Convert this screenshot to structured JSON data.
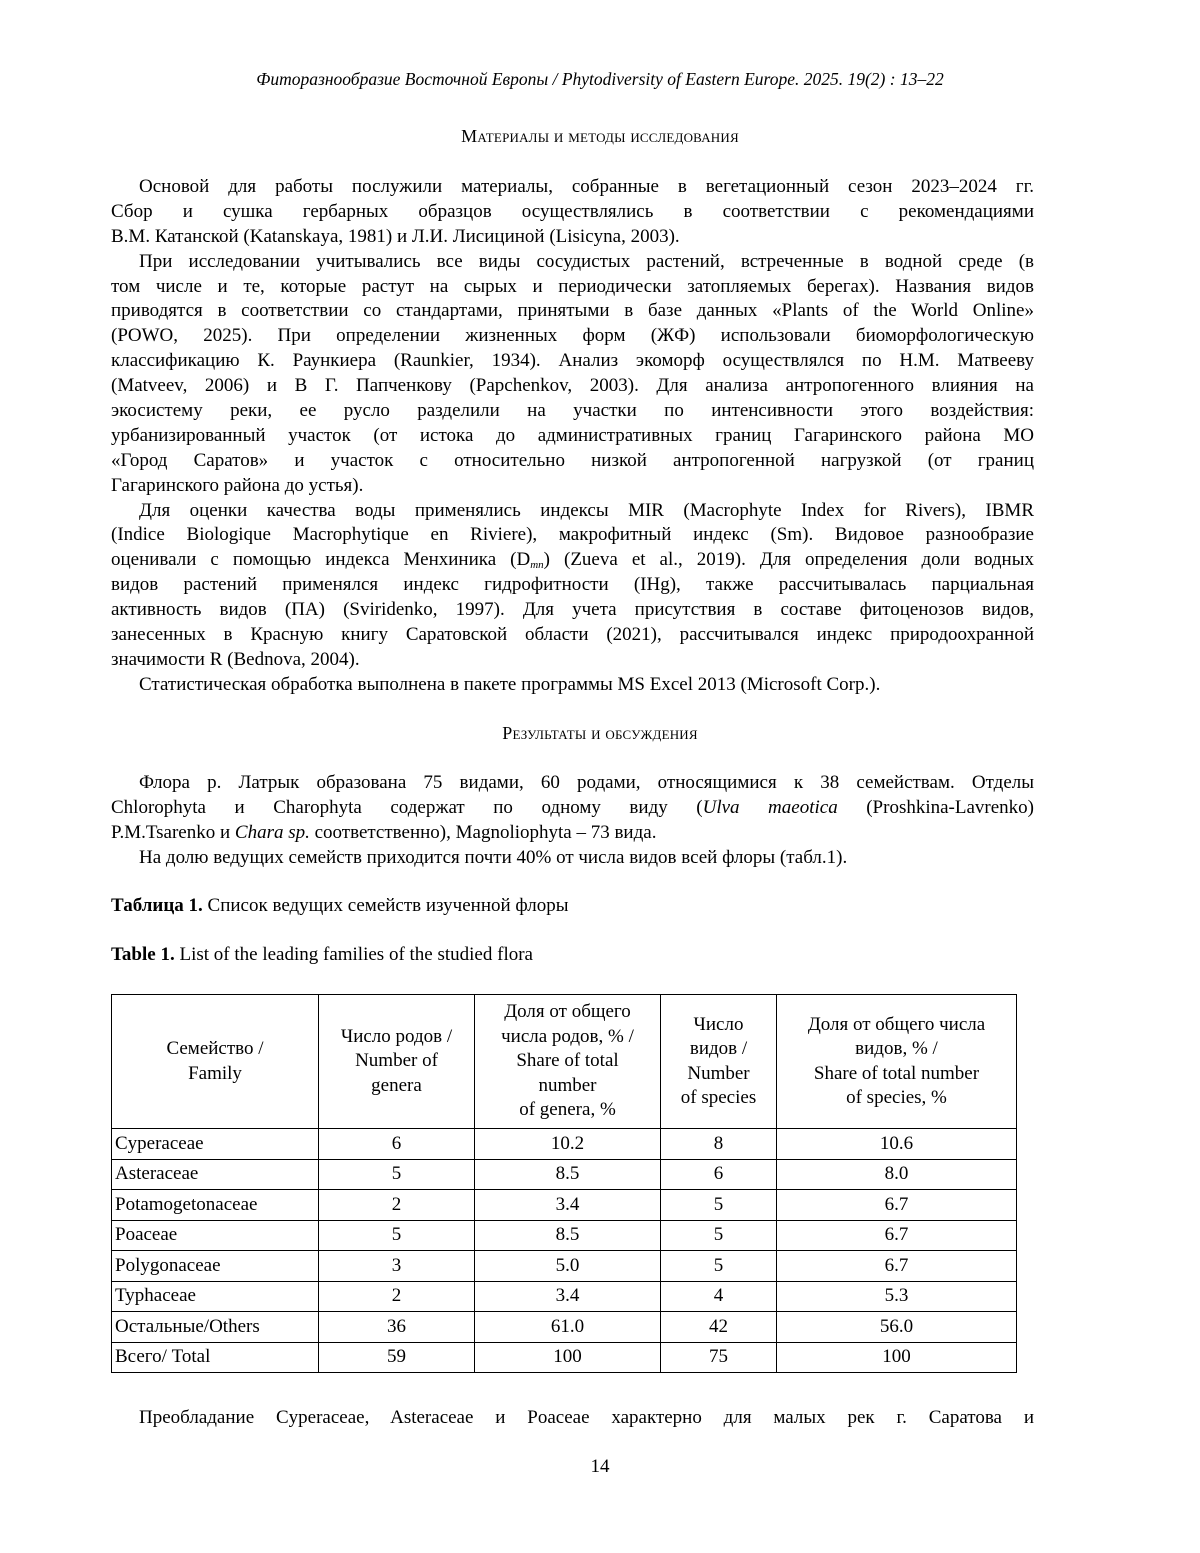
{
  "running_head": "Фиторазнообразие Восточной Европы / Phytodiversity of Eastern Europe. 2025. 19(2) : 13–22",
  "methods": {
    "heading": "Материалы и методы исследования",
    "paragraphs": [
      [
        "Основой для работы послужили материалы, собранные в вегетационный сезон 2023–2024 гг.",
        "Сбор и сушка гербарных образцов осуществлялись в соответствии с рекомендациями",
        "В.М. Катанской (Katanskaya, 1981) и Л.И. Лисициной (Lisicyna, 2003)."
      ],
      [
        "При исследовании учитывались все виды сосудистых растений, встреченные в водной среде (в",
        "том числе и те, которые растут на сырых и периодически затопляемых берегах). Названия видов",
        "приводятся в соответствии со стандартами, принятыми в базе данных «Plants of the World Online»",
        "(POWO, 2025). При определении жизненных форм (ЖФ) использовали биоморфологическую",
        "классификацию К. Раункиера (Raunkier, 1934). Анализ экоморф осуществлялся по Н.М. Матвееву",
        "(Matveev, 2006) и В Г. Папченкову (Papchenkov, 2003). Для анализа антропогенного влияния на",
        "экосистему реки, ее русло разделили на участки по интенсивности этого воздействия:",
        "урбанизированный участок (от истока до административных границ Гагаринского района МО",
        "«Город Саратов» и участок с относительно низкой антропогенной нагрузкой (от границ",
        "Гагаринского района до устья)."
      ],
      [
        "Для оценки качества воды применялись индексы MIR (Macrophyte Index for Rivers), IBMR",
        "(Indice Biologique Macrophytique en Riviere), макрофитный индекс (Sm). Видовое разнообразие",
        [
          {
            "t": "оценивали с помощью индекса Менхиника (D"
          },
          {
            "t": "mn",
            "s": "sub"
          },
          {
            "t": ") (Zueva et al., 2019). Для определения доли водных"
          }
        ],
        "видов растений применялся индекс гидрофитности (IHg), также рассчитывалась парциальная",
        "активность видов (ПА) (Sviridenko, 1997). Для учета присутствия в составе фитоценозов видов,",
        "занесенных в Красную книгу Саратовской области (2021), рассчитывался индекс природоохранной",
        "значимости R (Bednova, 2004)."
      ],
      [
        "Статистическая обработка выполнена в пакете программы MS Excel 2013 (Microsoft Corp.)."
      ]
    ]
  },
  "results": {
    "heading": "Результаты и обсуждения",
    "paragraphs": [
      [
        "Флора р. Латрык образована 75 видами, 60 родами, относящимися к 38 семействам. Отделы",
        [
          {
            "t": "Chlorophyta и Charophyta содержат по одному виду ("
          },
          {
            "t": "Ulva maeotica",
            "s": "i"
          },
          {
            "t": " (Proshkina-Lavrenko)"
          }
        ],
        [
          {
            "t": "P.M.Tsarenko и "
          },
          {
            "t": "Chara sp.",
            "s": "i"
          },
          {
            "t": " соответственно), Magnoliophyta – 73 вида."
          }
        ]
      ],
      [
        "На долю ведущих семейств приходится почти 40% от числа видов всей флоры (табл.1)."
      ]
    ]
  },
  "table_caption_ru": {
    "label": "Таблица 1.",
    "text": " Список ведущих семейств изученной флоры"
  },
  "table_caption_en": {
    "label": "Table 1.",
    "text": " List of the leading families of the studied flora"
  },
  "table": {
    "headers": [
      [
        "Семейство /",
        "Family"
      ],
      [
        "Число родов /",
        "Number of",
        "genera"
      ],
      [
        "Доля от общего",
        "числа родов, % /",
        "Share of total",
        "number",
        "of genera, %"
      ],
      [
        "Число",
        "видов /",
        "Number",
        "of species"
      ],
      [
        "Доля от общего числа",
        "видов, % /",
        "Share of total number",
        "of species, %"
      ]
    ],
    "rows": [
      [
        "Cyperaceae",
        "6",
        "10.2",
        "8",
        "10.6"
      ],
      [
        "Asteraceae",
        "5",
        "8.5",
        "6",
        "8.0"
      ],
      [
        "Potamogetonaceae",
        "2",
        "3.4",
        "5",
        "6.7"
      ],
      [
        "Poaceae",
        "5",
        "8.5",
        "5",
        "6.7"
      ],
      [
        "Polygonaceae",
        "3",
        "5.0",
        "5",
        "6.7"
      ],
      [
        "Typhaceae",
        "2",
        "3.4",
        "4",
        "5.3"
      ],
      [
        "Остальные/Others",
        "36",
        "61.0",
        "42",
        "56.0"
      ],
      [
        "Всего/ Total",
        "59",
        "100",
        "75",
        "100"
      ]
    ]
  },
  "continuation": "Преобладание Cyperaceae, Asteraceae и Poaceae характерно для малых рек г. Саратова и",
  "page_number": "14"
}
